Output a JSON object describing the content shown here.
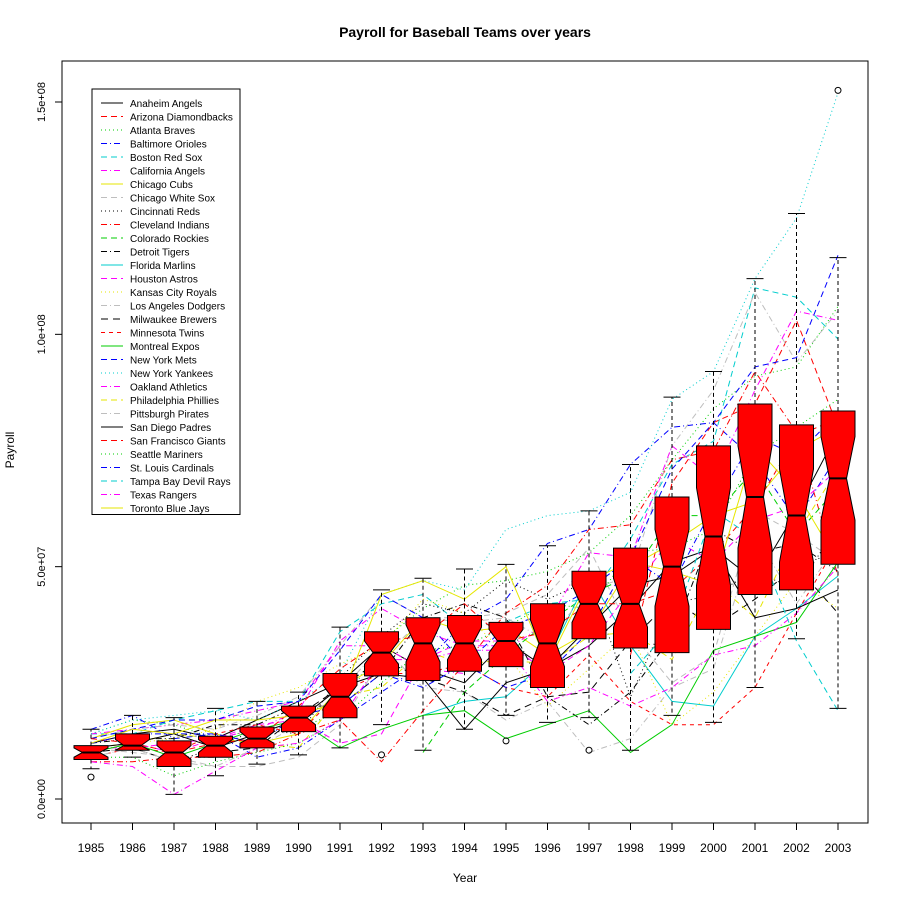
{
  "chart_data": {
    "type": "box",
    "title": "Payroll for Baseball Teams over years",
    "xlabel": "Year",
    "ylabel": "Payroll",
    "notched": true,
    "box_color": "#ff0000",
    "categories": [
      "1985",
      "1986",
      "1987",
      "1988",
      "1989",
      "1990",
      "1991",
      "1992",
      "1993",
      "1994",
      "1995",
      "1996",
      "1997",
      "1998",
      "1999",
      "2000",
      "2001",
      "2002",
      "2003"
    ],
    "yticks": [
      {
        "value": 0,
        "label": "0.0e+00"
      },
      {
        "value": 50000000,
        "label": "5.0e+07"
      },
      {
        "value": 100000000,
        "label": "1.0e+08"
      },
      {
        "value": 150000000,
        "label": "1.5e+08"
      }
    ],
    "ylim": [
      -4500000,
      159000000
    ],
    "boxes": [
      {
        "year": "1985",
        "min": 6500000,
        "q1": 8500000,
        "median": 10000000,
        "q3": 11500000,
        "max": 15000000,
        "notch_lo": 9000000,
        "notch_hi": 11000000,
        "outliers": [
          4700000
        ]
      },
      {
        "year": "1986",
        "min": 9000000,
        "q1": 10500000,
        "median": 11500000,
        "q3": 14000000,
        "max": 18000000,
        "notch_lo": 10500000,
        "notch_hi": 12800000,
        "outliers": []
      },
      {
        "year": "1987",
        "min": 1000000,
        "q1": 7000000,
        "median": 10000000,
        "q3": 12500000,
        "max": 17500000,
        "notch_lo": 8500000,
        "notch_hi": 11500000,
        "outliers": []
      },
      {
        "year": "1988",
        "min": 5000000,
        "q1": 9000000,
        "median": 11500000,
        "q3": 13500000,
        "max": 19500000,
        "notch_lo": 10000000,
        "notch_hi": 12800000,
        "outliers": []
      },
      {
        "year": "1989",
        "min": 7500000,
        "q1": 11000000,
        "median": 13000000,
        "q3": 15500000,
        "max": 21000000,
        "notch_lo": 12000000,
        "notch_hi": 14500000,
        "outliers": []
      },
      {
        "year": "1990",
        "min": 9500000,
        "q1": 14500000,
        "median": 17500000,
        "q3": 20000000,
        "max": 23000000,
        "notch_lo": 16000000,
        "notch_hi": 19000000,
        "outliers": []
      },
      {
        "year": "1991",
        "min": 11000000,
        "q1": 17500000,
        "median": 22000000,
        "q3": 27000000,
        "max": 37000000,
        "notch_lo": 19500000,
        "notch_hi": 24500000,
        "outliers": []
      },
      {
        "year": "1992",
        "min": 16000000,
        "q1": 26500000,
        "median": 31500000,
        "q3": 36000000,
        "max": 45000000,
        "notch_lo": 29000000,
        "notch_hi": 34000000,
        "outliers": [
          9500000
        ]
      },
      {
        "year": "1993",
        "min": 10500000,
        "q1": 25500000,
        "median": 33500000,
        "q3": 39000000,
        "max": 47500000,
        "notch_lo": 29500000,
        "notch_hi": 37500000,
        "outliers": []
      },
      {
        "year": "1994",
        "min": 15000000,
        "q1": 27500000,
        "median": 33500000,
        "q3": 39500000,
        "max": 49500000,
        "notch_lo": 30000000,
        "notch_hi": 37000000,
        "outliers": []
      },
      {
        "year": "1995",
        "min": 18000000,
        "q1": 28500000,
        "median": 34000000,
        "q3": 38000000,
        "max": 50500000,
        "notch_lo": 31500000,
        "notch_hi": 36500000,
        "outliers": [
          12500000
        ]
      },
      {
        "year": "1996",
        "min": 16500000,
        "q1": 24000000,
        "median": 33500000,
        "q3": 42000000,
        "max": 54500000,
        "notch_lo": 28500000,
        "notch_hi": 38500000,
        "outliers": []
      },
      {
        "year": "1997",
        "min": 17500000,
        "q1": 34500000,
        "median": 42000000,
        "q3": 49000000,
        "max": 62000000,
        "notch_lo": 38000000,
        "notch_hi": 46000000,
        "outliers": [
          10500000
        ]
      },
      {
        "year": "1998",
        "min": 10500000,
        "q1": 32500000,
        "median": 42000000,
        "q3": 54000000,
        "max": 72000000,
        "notch_lo": 37000000,
        "notch_hi": 47500000,
        "outliers": []
      },
      {
        "year": "1999",
        "min": 18000000,
        "q1": 31500000,
        "median": 50000000,
        "q3": 65000000,
        "max": 86500000,
        "notch_lo": 41500000,
        "notch_hi": 58000000,
        "outliers": []
      },
      {
        "year": "2000",
        "min": 16500000,
        "q1": 36500000,
        "median": 56500000,
        "q3": 76000000,
        "max": 92000000,
        "notch_lo": 46000000,
        "notch_hi": 67000000,
        "outliers": []
      },
      {
        "year": "2001",
        "min": 24000000,
        "q1": 44000000,
        "median": 65000000,
        "q3": 85000000,
        "max": 112000000,
        "notch_lo": 54000000,
        "notch_hi": 76000000,
        "outliers": []
      },
      {
        "year": "2002",
        "min": 34500000,
        "q1": 45000000,
        "median": 61000000,
        "q3": 80500000,
        "max": 126000000,
        "notch_lo": 51000000,
        "notch_hi": 71000000,
        "outliers": []
      },
      {
        "year": "2003",
        "min": 19500000,
        "q1": 50500000,
        "median": 69000000,
        "q3": 83500000,
        "max": 116500000,
        "notch_lo": 60000000,
        "notch_hi": 78000000,
        "outliers": [
          152500000
        ]
      }
    ],
    "series": [
      {
        "name": "Anaheim Angels",
        "color": "#000000",
        "dash": "",
        "values": [
          12,
          14,
          15,
          13,
          17,
          21,
          25,
          33,
          28,
          25,
          34,
          28,
          33,
          41,
          51,
          54,
          47,
          62,
          79
        ]
      },
      {
        "name": "Arizona Diamondbacks",
        "color": "#ff0000",
        "dash": "6,4",
        "values": [
          null,
          null,
          null,
          null,
          null,
          null,
          null,
          null,
          null,
          null,
          null,
          null,
          null,
          31,
          68,
          81,
          85,
          103,
          80
        ]
      },
      {
        "name": "Atlanta Braves",
        "color": "#00cd00",
        "dash": "1,3",
        "values": [
          14,
          17,
          16,
          13,
          15,
          15,
          19,
          34,
          41,
          46,
          47,
          49,
          53,
          61,
          73,
          84,
          91,
          93,
          106
        ]
      },
      {
        "name": "Baltimore Orioles",
        "color": "#0000ff",
        "dash": "6,3,1,3",
        "values": [
          15,
          18,
          13,
          14,
          9,
          11,
          17,
          23,
          29,
          38,
          43,
          55,
          58,
          72,
          80,
          81,
          73,
          60,
          74
        ]
      },
      {
        "name": "Boston Red Sox",
        "color": "#00cdcd",
        "dash": "6,4",
        "values": [
          14,
          14,
          17,
          19,
          21,
          21,
          36,
          42,
          44,
          37,
          38,
          42,
          43,
          56,
          72,
          77,
          110,
          108,
          99
        ]
      },
      {
        "name": "California Angels",
        "color": "#ff00ff",
        "dash": "6,3,1,3",
        "values": [
          14,
          15,
          16,
          17,
          19,
          21,
          33,
          33,
          28,
          27,
          null,
          null,
          null,
          null,
          null,
          null,
          null,
          null,
          null
        ]
      },
      {
        "name": "Chicago Cubs",
        "color": "#e6e600",
        "dash": "",
        "values": [
          13,
          16,
          17,
          14,
          12,
          14,
          24,
          29,
          39,
          36,
          37,
          31,
          36,
          50,
          55,
          61,
          64,
          75,
          80
        ]
      },
      {
        "name": "Chicago White Sox",
        "color": "#bebebe",
        "dash": "6,4",
        "values": [
          11,
          10,
          9,
          7,
          7,
          9,
          16,
          30,
          39,
          39,
          40,
          44,
          54,
          36,
          25,
          31,
          62,
          57,
          51
        ]
      },
      {
        "name": "Cincinnati Reds",
        "color": "#000000",
        "dash": "1,3",
        "values": [
          11,
          11,
          8,
          11,
          15,
          14,
          26,
          35,
          42,
          40,
          47,
          43,
          47,
          22,
          42,
          44,
          49,
          45,
          59
        ]
      },
      {
        "name": "Cleveland Indians",
        "color": "#ff0000",
        "dash": "6,3,1,3",
        "values": [
          8,
          8,
          9,
          9,
          10,
          14,
          17,
          8,
          19,
          29,
          40,
          46,
          58,
          59,
          73,
          75,
          92,
          79,
          48
        ]
      },
      {
        "name": "Colorado Rockies",
        "color": "#00cd00",
        "dash": "6,4",
        "values": [
          null,
          null,
          null,
          null,
          null,
          null,
          null,
          null,
          10,
          23,
          31,
          38,
          44,
          48,
          61,
          61,
          71,
          57,
          67
        ]
      },
      {
        "name": "Detroit Tigers",
        "color": "#000000",
        "dash": "6,3,1,3",
        "values": [
          12,
          13,
          13,
          16,
          16,
          20,
          20,
          27,
          39,
          42,
          39,
          22,
          16,
          23,
          35,
          58,
          53,
          55,
          49
        ]
      },
      {
        "name": "Florida Marlins",
        "color": "#00cdcd",
        "dash": "",
        "values": [
          null,
          null,
          null,
          null,
          null,
          null,
          null,
          null,
          18,
          21,
          22,
          30,
          48,
          33,
          21,
          20,
          35,
          41,
          48
        ]
      },
      {
        "name": "Houston Astros",
        "color": "#ff00ff",
        "dash": "6,4",
        "values": [
          11,
          11,
          12,
          13,
          16,
          17,
          12,
          14,
          30,
          34,
          34,
          27,
          33,
          45,
          56,
          51,
          60,
          63,
          71
        ]
      },
      {
        "name": "Kansas City Royals",
        "color": "#e6e600",
        "dash": "1,3",
        "values": [
          10,
          12,
          13,
          15,
          21,
          24,
          29,
          33,
          43,
          40,
          31,
          20,
          28,
          36,
          16,
          23,
          35,
          47,
          41
        ]
      },
      {
        "name": "Los Angeles Dodgers",
        "color": "#bebebe",
        "dash": "6,3,1,3",
        "values": [
          13,
          15,
          16,
          15,
          18,
          22,
          33,
          44,
          39,
          38,
          39,
          34,
          45,
          48,
          76,
          88,
          109,
          94,
          105
        ]
      },
      {
        "name": "Milwaukee Brewers",
        "color": "#000000",
        "dash": "7,5",
        "values": [
          10,
          11,
          8,
          10,
          11,
          18,
          24,
          30,
          26,
          23,
          18,
          22,
          23,
          34,
          43,
          37,
          43,
          50,
          40
        ]
      },
      {
        "name": "Minnesota Twins",
        "color": "#ff0000",
        "dash": "4,4",
        "values": [
          9,
          11,
          10,
          14,
          16,
          14,
          23,
          27,
          27,
          29,
          24,
          22,
          31,
          21,
          16,
          16,
          24,
          40,
          55
        ]
      },
      {
        "name": "Montreal Expos",
        "color": "#00cd00",
        "dash": "",
        "values": [
          10,
          12,
          9,
          12,
          15,
          17,
          11,
          15,
          18,
          19,
          13,
          16,
          19,
          10,
          16,
          32,
          35,
          38,
          51
        ]
      },
      {
        "name": "New York Mets",
        "color": "#0000ff",
        "dash": "6,4",
        "values": [
          13,
          15,
          17,
          17,
          20,
          21,
          32,
          44,
          39,
          29,
          24,
          27,
          36,
          52,
          71,
          81,
          93,
          95,
          117
        ]
      },
      {
        "name": "New York Yankees",
        "color": "#00cdcd",
        "dash": "1,3",
        "values": [
          14,
          17,
          18,
          19,
          17,
          21,
          27,
          44,
          47,
          45,
          58,
          61,
          62,
          66,
          86,
          92,
          112,
          125,
          152
        ]
      },
      {
        "name": "Oakland Athletics",
        "color": "#ff00ff",
        "dash": "6,3,1,3",
        "values": [
          11,
          12,
          10,
          13,
          15,
          19,
          34,
          41,
          36,
          33,
          33,
          21,
          24,
          20,
          24,
          31,
          33,
          40,
          50
        ]
      },
      {
        "name": "Philadelphia Phillies",
        "color": "#e6e600",
        "dash": "6,4",
        "values": [
          11,
          12,
          14,
          13,
          12,
          11,
          22,
          24,
          32,
          29,
          30,
          29,
          35,
          36,
          30,
          47,
          39,
          57,
          71
        ]
      },
      {
        "name": "Pittsburgh Pirates",
        "color": "#bebebe",
        "dash": "6,3,1,3",
        "values": [
          9,
          11,
          8,
          7,
          11,
          16,
          23,
          33,
          24,
          23,
          17,
          21,
          10,
          13,
          24,
          28,
          57,
          42,
          55
        ]
      },
      {
        "name": "San Diego Padres",
        "color": "#000000",
        "dash": "",
        "values": [
          11,
          12,
          14,
          11,
          14,
          17,
          24,
          27,
          26,
          15,
          25,
          28,
          37,
          46,
          48,
          54,
          39,
          41,
          45
        ]
      },
      {
        "name": "San Francisco Giants",
        "color": "#ff0000",
        "dash": "6,4",
        "values": [
          13,
          12,
          10,
          12,
          13,
          20,
          28,
          34,
          35,
          42,
          34,
          36,
          42,
          42,
          45,
          53,
          63,
          78,
          82
        ]
      },
      {
        "name": "Seattle Mariners",
        "color": "#00cd00",
        "dash": "1,3",
        "values": [
          9,
          9,
          5,
          8,
          10,
          12,
          17,
          25,
          32,
          33,
          37,
          42,
          41,
          53,
          54,
          58,
          74,
          80,
          86
        ]
      },
      {
        "name": "St. Louis Cardinals",
        "color": "#0000ff",
        "dash": "6,3,1,3",
        "values": [
          12,
          14,
          14,
          14,
          12,
          18,
          20,
          27,
          24,
          29,
          37,
          40,
          45,
          52,
          46,
          63,
          78,
          74,
          83
        ]
      },
      {
        "name": "Tampa Bay Devil Rays",
        "color": "#00cdcd",
        "dash": "6,4",
        "values": [
          null,
          null,
          null,
          null,
          null,
          null,
          null,
          null,
          null,
          null,
          null,
          null,
          null,
          27,
          37,
          62,
          56,
          34,
          19
        ]
      },
      {
        "name": "Texas Rangers",
        "color": "#ff00ff",
        "dash": "6,3,1,3",
        "values": [
          8,
          7,
          1,
          6,
          11,
          12,
          17,
          30,
          30,
          32,
          32,
          38,
          53,
          52,
          76,
          69,
          88,
          105,
          103
        ]
      },
      {
        "name": "Toronto Blue Jays",
        "color": "#e6e600",
        "dash": "",
        "values": [
          12,
          15,
          14,
          17,
          17,
          18,
          21,
          44,
          47,
          43,
          50,
          29,
          47,
          51,
          49,
          46,
          76,
          66,
          51
        ]
      }
    ]
  }
}
